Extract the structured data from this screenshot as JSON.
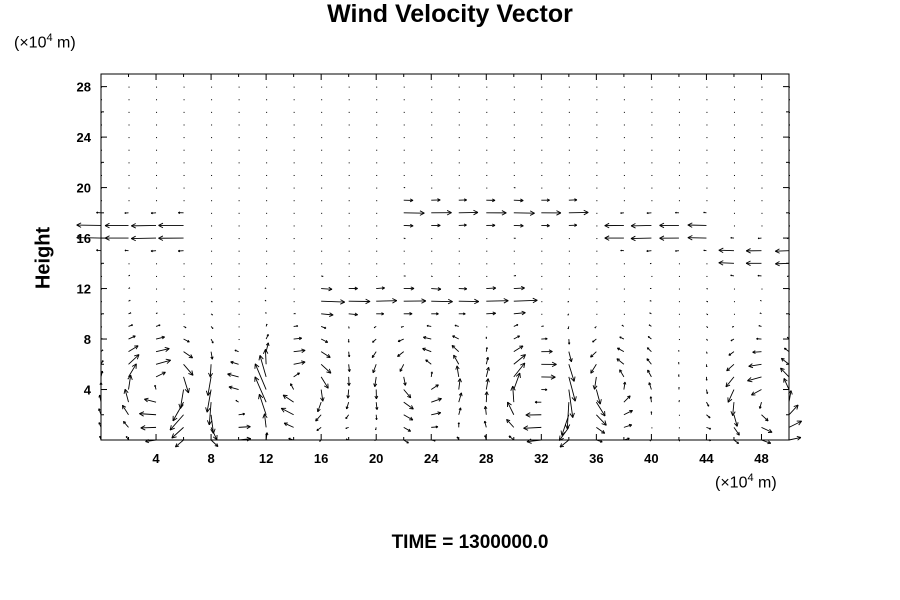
{
  "chart_data": {
    "type": "vector-field",
    "title": "Wind Velocity Vector",
    "ylabel": "Height",
    "x_unit": {
      "prefix": "(×10",
      "exp": "4",
      "suffix": " m)"
    },
    "y_unit": {
      "prefix": "(×10",
      "exp": "4",
      "suffix": " m)"
    },
    "time_label": "TIME = 1300000.0",
    "xlim": [
      0,
      50
    ],
    "ylim": [
      0,
      29
    ],
    "x_ticks": [
      "4",
      "8",
      "12",
      "16",
      "20",
      "24",
      "28",
      "32",
      "36",
      "40",
      "44",
      "48"
    ],
    "y_ticks": [
      "4",
      "8",
      "12",
      "16",
      "20",
      "24",
      "28"
    ],
    "grid": false,
    "field": {
      "circulations": [
        {
          "x": 4.5,
          "y": 4,
          "strength": 1.0,
          "sign": -1
        },
        {
          "x": 10.5,
          "y": 3,
          "strength": 1.0,
          "sign": 1
        },
        {
          "x": 13.5,
          "y": 4,
          "strength": 1.0,
          "sign": -1
        },
        {
          "x": 23.5,
          "y": 5,
          "strength": 0.6,
          "sign": 1
        },
        {
          "x": 32.5,
          "y": 3.5,
          "strength": 1.2,
          "sign": -1
        },
        {
          "x": 36,
          "y": 4,
          "strength": 0.8,
          "sign": 1
        },
        {
          "x": 48.5,
          "y": 3,
          "strength": 0.8,
          "sign": 1
        }
      ],
      "jets": [
        {
          "y": 16.5,
          "x_from": 0,
          "x_to": 6,
          "speed": -1.5
        },
        {
          "y": 18,
          "x_from": 21,
          "x_to": 34,
          "speed": 1.0
        },
        {
          "y": 16.5,
          "x_from": 38,
          "x_to": 45,
          "speed": -1.2
        },
        {
          "y": 11,
          "x_from": 16,
          "x_to": 31,
          "speed": 1.1
        },
        {
          "y": 14.5,
          "x_from": 46,
          "x_to": 50,
          "speed": -0.9
        }
      ]
    }
  }
}
